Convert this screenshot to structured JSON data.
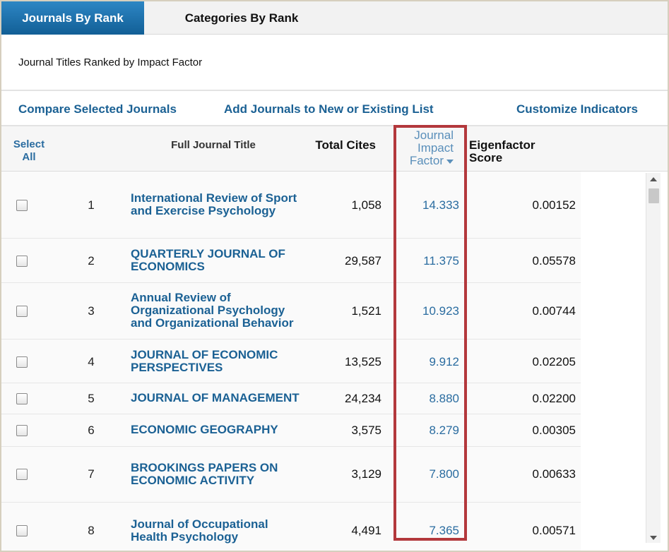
{
  "tabs": [
    {
      "label": "Journals By Rank",
      "active": true
    },
    {
      "label": "Categories By Rank",
      "active": false
    }
  ],
  "subtitle": "Journal Titles Ranked by Impact Factor",
  "actions": {
    "compare": "Compare Selected Journals",
    "add_list": "Add Journals to New or Existing List",
    "customize": "Customize Indicators"
  },
  "columns": {
    "select_all_1": "Select",
    "select_all_2": "All",
    "title": "Full Journal Title",
    "cites": "Total Cites",
    "jif_1": "Journal",
    "jif_2": "Impact",
    "jif_3": "Factor",
    "eigen": "Eigenfactor Score"
  },
  "rows": [
    {
      "rank": "1",
      "title": "International Review of Sport and Exercise Psychology",
      "cites": "1,058",
      "jif": "14.333",
      "eigen": "0.00152"
    },
    {
      "rank": "2",
      "title": "QUARTERLY JOURNAL OF ECONOMICS",
      "cites": "29,587",
      "jif": "11.375",
      "eigen": "0.05578"
    },
    {
      "rank": "3",
      "title": "Annual Review of Organizational Psychology and Organizational Behavior",
      "cites": "1,521",
      "jif": "10.923",
      "eigen": "0.00744"
    },
    {
      "rank": "4",
      "title": "JOURNAL OF ECONOMIC PERSPECTIVES",
      "cites": "13,525",
      "jif": "9.912",
      "eigen": "0.02205"
    },
    {
      "rank": "5",
      "title": "JOURNAL OF MANAGEMENT",
      "cites": "24,234",
      "jif": "8.880",
      "eigen": "0.02200"
    },
    {
      "rank": "6",
      "title": "ECONOMIC GEOGRAPHY",
      "cites": "3,575",
      "jif": "8.279",
      "eigen": "0.00305"
    },
    {
      "rank": "7",
      "title": "BROOKINGS PAPERS ON ECONOMIC ACTIVITY",
      "cites": "3,129",
      "jif": "7.800",
      "eigen": "0.00633"
    },
    {
      "rank": "8",
      "title": "Journal of Occupational Health Psychology",
      "cites": "4,491",
      "jif": "7.365",
      "eigen": "0.00571"
    }
  ],
  "colors": {
    "accent": "#1b6194",
    "highlight": "#b3383c"
  }
}
